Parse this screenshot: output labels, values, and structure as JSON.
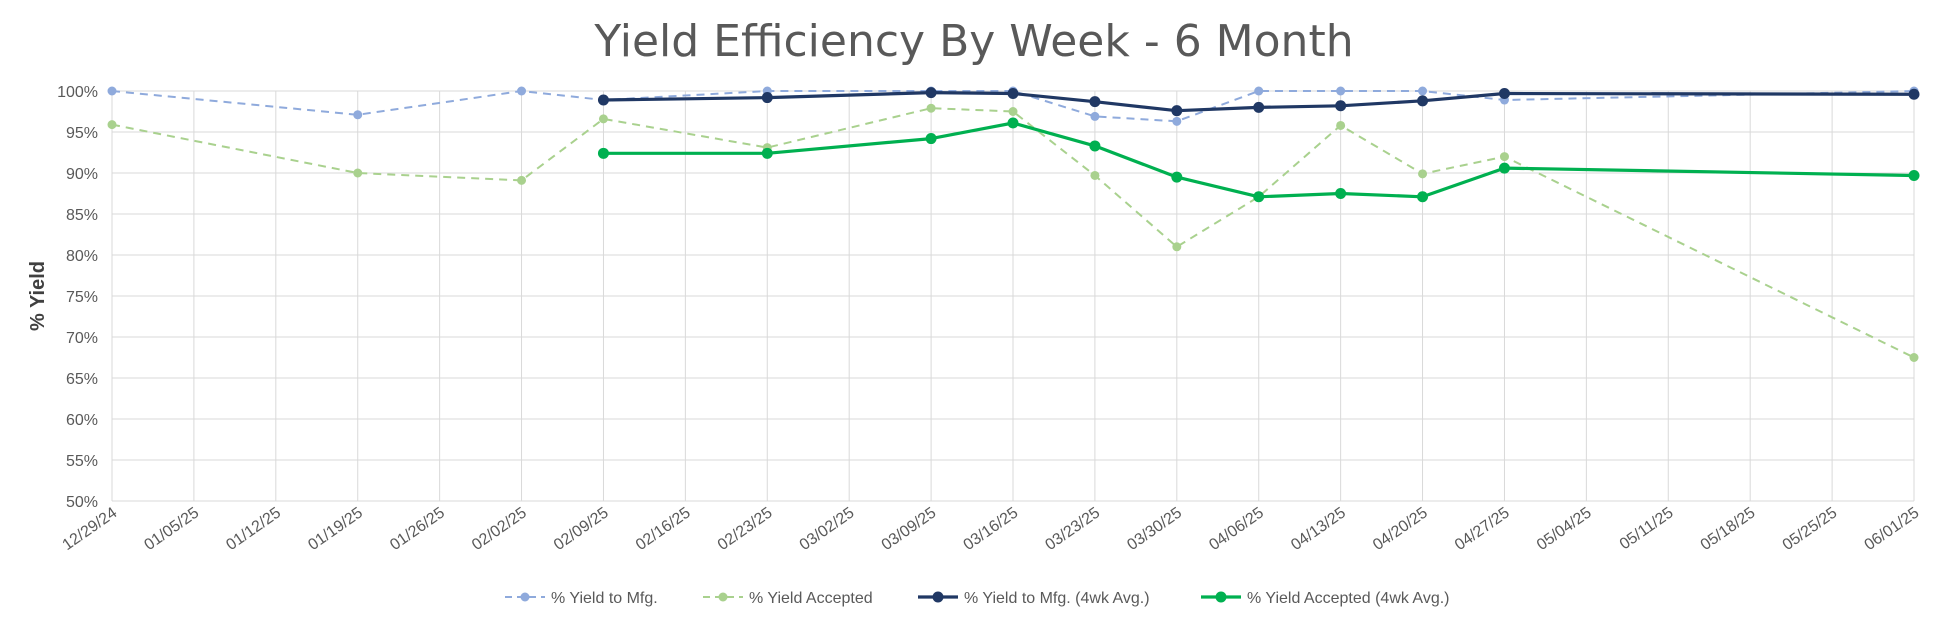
{
  "chart_data": {
    "type": "line",
    "title": "Yield Efficiency By Week - 6 Month",
    "xlabel": "",
    "ylabel": "% Yield",
    "ylim": [
      50,
      100
    ],
    "ytick_step": 5,
    "ytick_suffix": "%",
    "grid": true,
    "legend_position": "bottom",
    "categories": [
      "12/29/24",
      "01/05/25",
      "01/12/25",
      "01/19/25",
      "01/26/25",
      "02/02/25",
      "02/09/25",
      "02/16/25",
      "02/23/25",
      "03/02/25",
      "03/09/25",
      "03/16/25",
      "03/23/25",
      "03/30/25",
      "04/06/25",
      "04/13/25",
      "04/20/25",
      "04/27/25",
      "05/04/25",
      "05/11/25",
      "05/18/25",
      "05/25/25",
      "06/01/25"
    ],
    "series": [
      {
        "name": "% Yield to Mfg.",
        "color": "#8faadc",
        "style": "dashed",
        "points": [
          [
            0,
            100
          ],
          [
            3,
            97.1
          ],
          [
            5,
            100
          ],
          [
            6,
            98.9
          ],
          [
            8,
            100
          ],
          [
            10,
            100
          ],
          [
            11,
            100
          ],
          [
            12,
            96.9
          ],
          [
            13,
            96.3
          ],
          [
            14,
            100
          ],
          [
            15,
            100
          ],
          [
            16,
            100
          ],
          [
            17,
            98.9
          ],
          [
            22,
            100
          ]
        ]
      },
      {
        "name": "% Yield Accepted",
        "color": "#a9d18e",
        "style": "dashed",
        "points": [
          [
            0,
            95.9
          ],
          [
            3,
            90
          ],
          [
            5,
            89.1
          ],
          [
            6,
            96.6
          ],
          [
            8,
            93.1
          ],
          [
            10,
            97.9
          ],
          [
            11,
            97.5
          ],
          [
            12,
            89.7
          ],
          [
            13,
            81
          ],
          [
            14,
            87.1
          ],
          [
            15,
            95.8
          ],
          [
            16,
            89.9
          ],
          [
            17,
            92
          ],
          [
            22,
            67.5
          ]
        ]
      },
      {
        "name": "% Yield to Mfg. (4wk Avg.)",
        "color": "#203864",
        "style": "solid",
        "points": [
          [
            6,
            98.9
          ],
          [
            8,
            99.2
          ],
          [
            10,
            99.8
          ],
          [
            11,
            99.7
          ],
          [
            12,
            98.7
          ],
          [
            13,
            97.6
          ],
          [
            14,
            98
          ],
          [
            15,
            98.2
          ],
          [
            16,
            98.8
          ],
          [
            17,
            99.7
          ],
          [
            22,
            99.6
          ]
        ]
      },
      {
        "name": "% Yield Accepted (4wk Avg.)",
        "color": "#00b050",
        "style": "solid",
        "points": [
          [
            6,
            92.4
          ],
          [
            8,
            92.4
          ],
          [
            10,
            94.2
          ],
          [
            11,
            96.1
          ],
          [
            12,
            93.3
          ],
          [
            13,
            89.5
          ],
          [
            14,
            87.1
          ],
          [
            15,
            87.5
          ],
          [
            16,
            87.1
          ],
          [
            17,
            90.6
          ],
          [
            22,
            89.7
          ]
        ]
      }
    ]
  }
}
